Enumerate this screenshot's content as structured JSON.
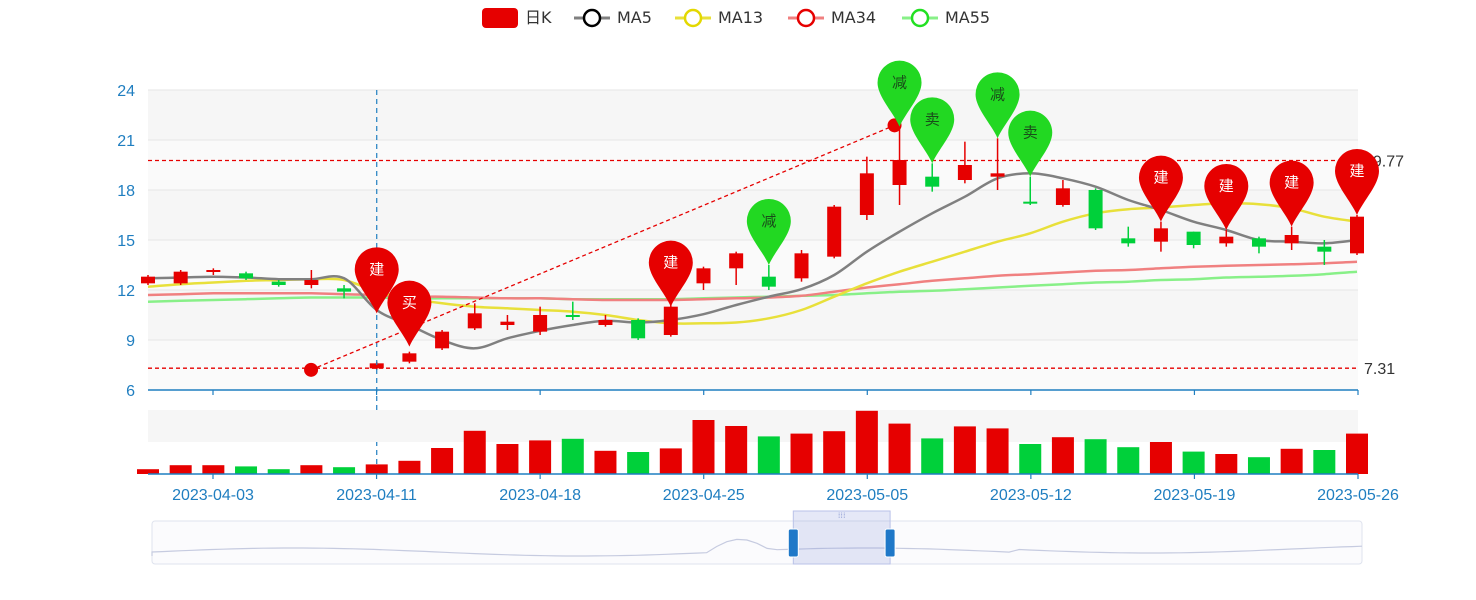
{
  "legend": [
    {
      "name": "日K",
      "color": "#e60000",
      "kind": "candle"
    },
    {
      "name": "MA5",
      "color": "#000000",
      "line": "#808080",
      "kind": "line"
    },
    {
      "name": "MA13",
      "color": "#e3d800",
      "line": "#e8e03a",
      "kind": "line"
    },
    {
      "name": "MA34",
      "color": "#e60000",
      "line": "#f08080",
      "kind": "line"
    },
    {
      "name": "MA55",
      "color": "#22e022",
      "line": "#88f088",
      "kind": "line"
    }
  ],
  "colors": {
    "up": "#e60000",
    "down": "#00d03a",
    "axis": "#1f7ec0",
    "ma5": "#808080",
    "ma13": "#e8e03a",
    "ma34": "#f08080",
    "ma55": "#88f088",
    "pin_buy": "#e60000",
    "pin_sell": "#22d822",
    "ref_line": "#e60000"
  },
  "chart_data": {
    "type": "candlestick",
    "y_axis": {
      "min": 6,
      "max": 24,
      "ticks": [
        "6",
        "9",
        "12",
        "15",
        "18",
        "21",
        "24"
      ]
    },
    "x_axis_labels": [
      {
        "index": 2,
        "label": "2023-04-03"
      },
      {
        "index": 7,
        "label": "2023-04-11"
      },
      {
        "index": 12,
        "label": "2023-04-18"
      },
      {
        "index": 17,
        "label": "2023-04-25"
      },
      {
        "index": 22,
        "label": "2023-05-05"
      },
      {
        "index": 27,
        "label": "2023-05-12"
      },
      {
        "index": 32,
        "label": "2023-05-19"
      },
      {
        "index": 37,
        "label": "2023-05-26"
      }
    ],
    "candles": [
      {
        "o": 12.4,
        "c": 12.8,
        "l": 12.3,
        "h": 12.9
      },
      {
        "o": 12.4,
        "c": 13.1,
        "l": 12.3,
        "h": 13.2
      },
      {
        "o": 13.1,
        "c": 13.2,
        "l": 12.9,
        "h": 13.3
      },
      {
        "o": 13.0,
        "c": 12.7,
        "l": 12.6,
        "h": 13.1
      },
      {
        "o": 12.5,
        "c": 12.3,
        "l": 12.2,
        "h": 12.6
      },
      {
        "o": 12.3,
        "c": 12.6,
        "l": 12.1,
        "h": 13.2
      },
      {
        "o": 12.1,
        "c": 11.9,
        "l": 11.5,
        "h": 12.3
      },
      {
        "o": 7.3,
        "c": 7.6,
        "l": 7.2,
        "h": 7.7
      },
      {
        "o": 7.7,
        "c": 8.2,
        "l": 7.6,
        "h": 8.3
      },
      {
        "o": 8.5,
        "c": 9.5,
        "l": 8.4,
        "h": 9.6
      },
      {
        "o": 9.7,
        "c": 10.6,
        "l": 9.6,
        "h": 11.2
      },
      {
        "o": 9.9,
        "c": 10.1,
        "l": 9.6,
        "h": 10.5
      },
      {
        "o": 9.5,
        "c": 10.5,
        "l": 9.3,
        "h": 11.0
      },
      {
        "o": 10.5,
        "c": 10.4,
        "l": 10.2,
        "h": 11.3
      },
      {
        "o": 9.9,
        "c": 10.2,
        "l": 9.8,
        "h": 10.5
      },
      {
        "o": 10.2,
        "c": 9.1,
        "l": 9.0,
        "h": 10.3
      },
      {
        "o": 9.3,
        "c": 11.0,
        "l": 9.2,
        "h": 11.3
      },
      {
        "o": 12.4,
        "c": 13.3,
        "l": 12.0,
        "h": 13.4
      },
      {
        "o": 13.3,
        "c": 14.2,
        "l": 12.3,
        "h": 14.3
      },
      {
        "o": 12.8,
        "c": 12.2,
        "l": 12.0,
        "h": 13.5
      },
      {
        "o": 12.7,
        "c": 14.2,
        "l": 12.5,
        "h": 14.4
      },
      {
        "o": 14.0,
        "c": 17.0,
        "l": 13.9,
        "h": 17.1
      },
      {
        "o": 16.5,
        "c": 19.0,
        "l": 16.2,
        "h": 20.0
      },
      {
        "o": 18.3,
        "c": 19.8,
        "l": 17.1,
        "h": 21.8
      },
      {
        "o": 18.8,
        "c": 18.2,
        "l": 17.9,
        "h": 19.6
      },
      {
        "o": 18.6,
        "c": 19.5,
        "l": 18.4,
        "h": 20.9
      },
      {
        "o": 18.8,
        "c": 19.0,
        "l": 18.0,
        "h": 21.1
      },
      {
        "o": 17.3,
        "c": 17.2,
        "l": 17.1,
        "h": 18.8
      },
      {
        "o": 17.1,
        "c": 18.1,
        "l": 17.0,
        "h": 18.6
      },
      {
        "o": 18.0,
        "c": 15.7,
        "l": 15.6,
        "h": 18.1
      },
      {
        "o": 15.1,
        "c": 14.8,
        "l": 14.6,
        "h": 15.8
      },
      {
        "o": 14.9,
        "c": 15.7,
        "l": 14.3,
        "h": 16.1
      },
      {
        "o": 15.5,
        "c": 14.7,
        "l": 14.5,
        "h": 15.5
      },
      {
        "o": 14.8,
        "c": 15.2,
        "l": 14.6,
        "h": 15.6
      },
      {
        "o": 15.1,
        "c": 14.6,
        "l": 14.2,
        "h": 15.2
      },
      {
        "o": 14.8,
        "c": 15.3,
        "l": 14.4,
        "h": 15.8
      },
      {
        "o": 14.6,
        "c": 14.3,
        "l": 13.5,
        "h": 15.0
      },
      {
        "o": 14.2,
        "c": 16.4,
        "l": 14.1,
        "h": 16.5
      }
    ],
    "volumes": [
      12,
      22,
      22,
      19,
      12,
      22,
      17,
      24,
      33,
      65,
      108,
      75,
      84,
      88,
      58,
      55,
      64,
      135,
      120,
      94,
      101,
      107,
      158,
      126,
      89,
      119,
      114,
      75,
      92,
      87,
      67,
      80,
      56,
      50,
      42,
      63,
      60,
      101
    ],
    "ma5": [
      12.7,
      12.75,
      12.8,
      12.75,
      12.65,
      12.65,
      12.7,
      10.8,
      9.9,
      9.0,
      8.5,
      9.1,
      9.55,
      9.9,
      10.15,
      10.05,
      10.2,
      10.55,
      11.1,
      11.6,
      12.05,
      12.9,
      14.3,
      15.5,
      16.6,
      17.6,
      18.7,
      19.0,
      18.7,
      18.2,
      17.4,
      16.8,
      16.1,
      15.6,
      15.0,
      14.9,
      14.8,
      15.0
    ],
    "ma13": [
      12.2,
      12.35,
      12.45,
      12.55,
      12.6,
      12.65,
      12.6,
      11.9,
      11.5,
      11.2,
      11.0,
      10.9,
      10.8,
      10.7,
      10.5,
      10.2,
      10.0,
      10.0,
      10.05,
      10.3,
      10.8,
      11.6,
      12.4,
      13.1,
      13.7,
      14.3,
      14.9,
      15.4,
      16.1,
      16.6,
      16.85,
      16.95,
      17.1,
      17.2,
      17.15,
      16.9,
      16.4,
      16.1
    ],
    "ma34": [
      11.7,
      11.75,
      11.8,
      11.8,
      11.8,
      11.8,
      11.75,
      11.7,
      11.6,
      11.6,
      11.55,
      11.5,
      11.5,
      11.45,
      11.4,
      11.4,
      11.4,
      11.45,
      11.5,
      11.55,
      11.65,
      11.9,
      12.15,
      12.35,
      12.55,
      12.7,
      12.85,
      12.95,
      13.05,
      13.15,
      13.2,
      13.3,
      13.4,
      13.45,
      13.5,
      13.55,
      13.6,
      13.7
    ],
    "ma55": [
      11.3,
      11.35,
      11.4,
      11.45,
      11.5,
      11.55,
      11.55,
      11.55,
      11.5,
      11.5,
      11.5,
      11.5,
      11.5,
      11.45,
      11.45,
      11.45,
      11.45,
      11.5,
      11.55,
      11.6,
      11.65,
      11.7,
      11.8,
      11.9,
      11.95,
      12.05,
      12.15,
      12.25,
      12.35,
      12.45,
      12.5,
      12.6,
      12.65,
      12.75,
      12.8,
      12.85,
      12.95,
      13.1
    ],
    "reference_lines": [
      {
        "value": 19.77,
        "label": "19.77"
      },
      {
        "value": 7.31,
        "label": "7.31"
      }
    ],
    "trend_line": {
      "from": {
        "index": 6,
        "value": 7.21
      },
      "to": {
        "index": 23,
        "value": 21.88
      }
    },
    "crosshair_index": 7,
    "markers": [
      {
        "index": 7,
        "value": 10.6,
        "label": "建",
        "kind": "buy"
      },
      {
        "index": 8,
        "value": 8.6,
        "label": "买",
        "kind": "buy"
      },
      {
        "index": 16,
        "value": 11.0,
        "label": "建",
        "kind": "buy"
      },
      {
        "index": 19,
        "value": 13.5,
        "label": "减",
        "kind": "sell"
      },
      {
        "index": 23,
        "value": 21.8,
        "label": "减",
        "kind": "sell"
      },
      {
        "index": 24,
        "value": 19.6,
        "label": "卖",
        "kind": "sell"
      },
      {
        "index": 26,
        "value": 21.1,
        "label": "减",
        "kind": "sell"
      },
      {
        "index": 27,
        "value": 18.8,
        "label": "卖",
        "kind": "sell"
      },
      {
        "index": 31,
        "value": 16.1,
        "label": "建",
        "kind": "buy"
      },
      {
        "index": 33,
        "value": 15.6,
        "label": "建",
        "kind": "buy"
      },
      {
        "index": 35,
        "value": 15.8,
        "label": "建",
        "kind": "buy"
      },
      {
        "index": 37,
        "value": 16.5,
        "label": "建",
        "kind": "buy"
      }
    ],
    "datazoom": {
      "start_fraction": 0.53,
      "end_fraction": 0.61
    }
  }
}
